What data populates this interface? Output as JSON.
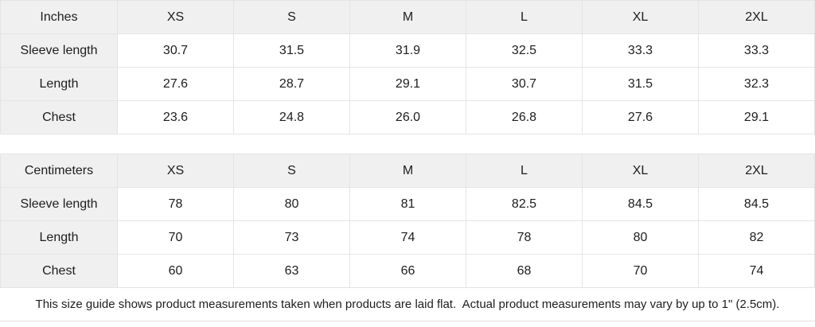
{
  "tables": [
    {
      "unit_label": "Inches",
      "sizes": [
        "XS",
        "S",
        "M",
        "L",
        "XL",
        "2XL"
      ],
      "rows": [
        {
          "label": "Sleeve length",
          "values": [
            "30.7",
            "31.5",
            "31.9",
            "32.5",
            "33.3",
            "33.3"
          ]
        },
        {
          "label": "Length",
          "values": [
            "27.6",
            "28.7",
            "29.1",
            "30.7",
            "31.5",
            "32.3"
          ]
        },
        {
          "label": "Chest",
          "values": [
            "23.6",
            "24.8",
            "26.0",
            "26.8",
            "27.6",
            "29.1"
          ]
        }
      ]
    },
    {
      "unit_label": "Centimeters",
      "sizes": [
        "XS",
        "S",
        "M",
        "L",
        "XL",
        "2XL"
      ],
      "rows": [
        {
          "label": "Sleeve length",
          "values": [
            "78",
            "80",
            "81",
            "82.5",
            "84.5",
            "84.5"
          ]
        },
        {
          "label": "Length",
          "values": [
            "70",
            "73",
            "74",
            "78",
            "80",
            "82"
          ]
        },
        {
          "label": "Chest",
          "values": [
            "60",
            "63",
            "66",
            "68",
            "70",
            "74"
          ]
        }
      ]
    }
  ],
  "footer": {
    "note": "This size guide shows product measurements taken when products are laid flat.  Actual product measurements may vary by up to 1\" (2.5cm)."
  },
  "colors": {
    "header_bg": "#f0f0f0",
    "border": "#e4e4e4",
    "text": "#1d1d1f"
  }
}
